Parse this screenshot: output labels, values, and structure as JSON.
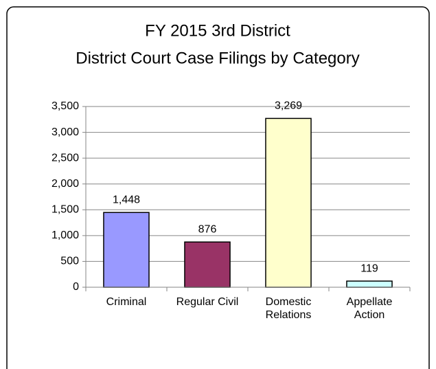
{
  "chart_data": {
    "type": "bar",
    "title": [
      "FY 2015 3rd District",
      "District Court Case Filings by Category"
    ],
    "categories": [
      "Criminal",
      "Regular Civil",
      "Domestic Relations",
      "Appellate Action"
    ],
    "values": [
      1448,
      876,
      3269,
      119
    ],
    "value_labels": [
      "1,448",
      "876",
      "3,269",
      "119"
    ],
    "colors": [
      "#9999ff",
      "#993366",
      "#ffffcc",
      "#ccffff"
    ],
    "ylim": [
      0,
      3500
    ],
    "yticks": [
      0,
      500,
      {
        "value": 1000,
        "label": "1,000"
      },
      {
        "value": 1500,
        "label": "1,500"
      },
      {
        "value": 2000,
        "label": "2,000"
      },
      {
        "value": 2500,
        "label": "2,500"
      },
      {
        "value": 3000,
        "label": "3,000"
      },
      {
        "value": 3500,
        "label": "3,500"
      }
    ],
    "grid": true
  }
}
